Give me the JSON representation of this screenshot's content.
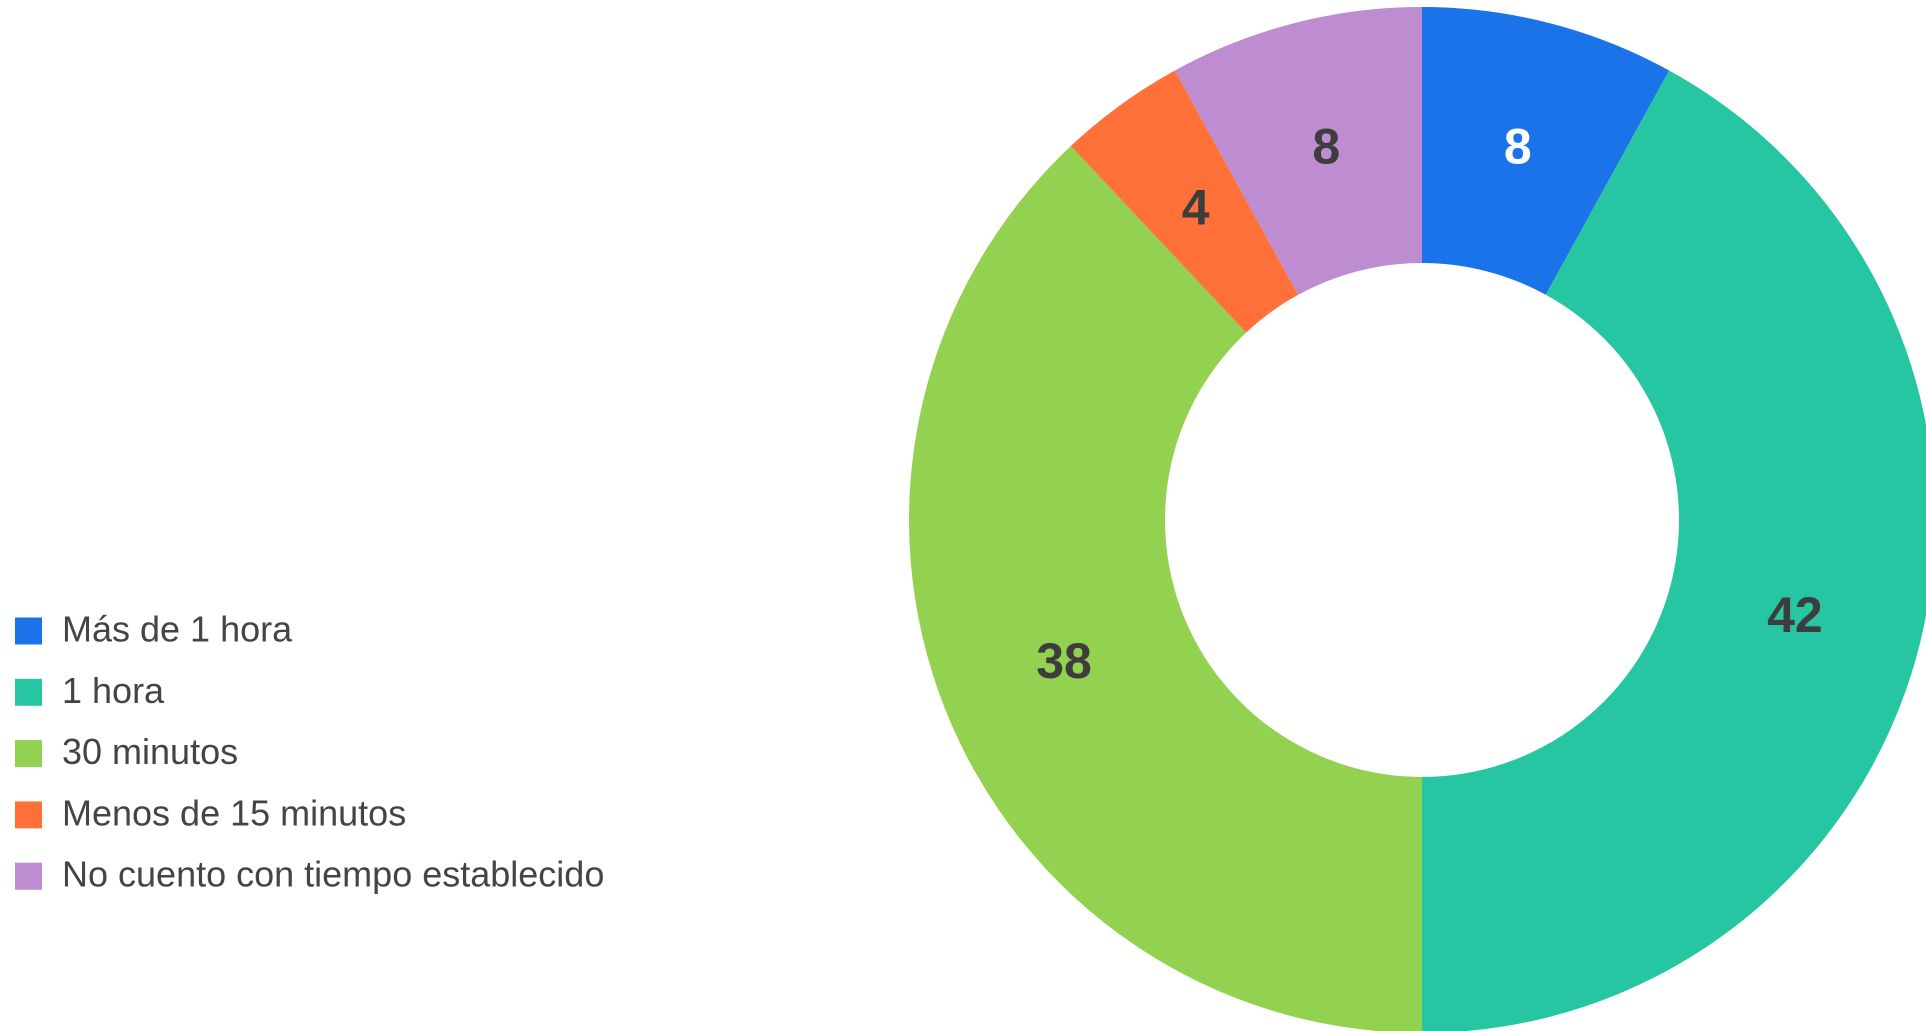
{
  "chart_data": {
    "type": "donut",
    "categories": [
      "Más de 1 hora",
      "1 hora",
      "30 minutos",
      "Menos de 15 minutos",
      "No cuento con tiempo establecido"
    ],
    "values": [
      8,
      42,
      38,
      4,
      8
    ],
    "colors": [
      "#1a73e8",
      "#26c6a2",
      "#93d150",
      "#ff7139",
      "#be8cd1"
    ],
    "legend": "left"
  }
}
